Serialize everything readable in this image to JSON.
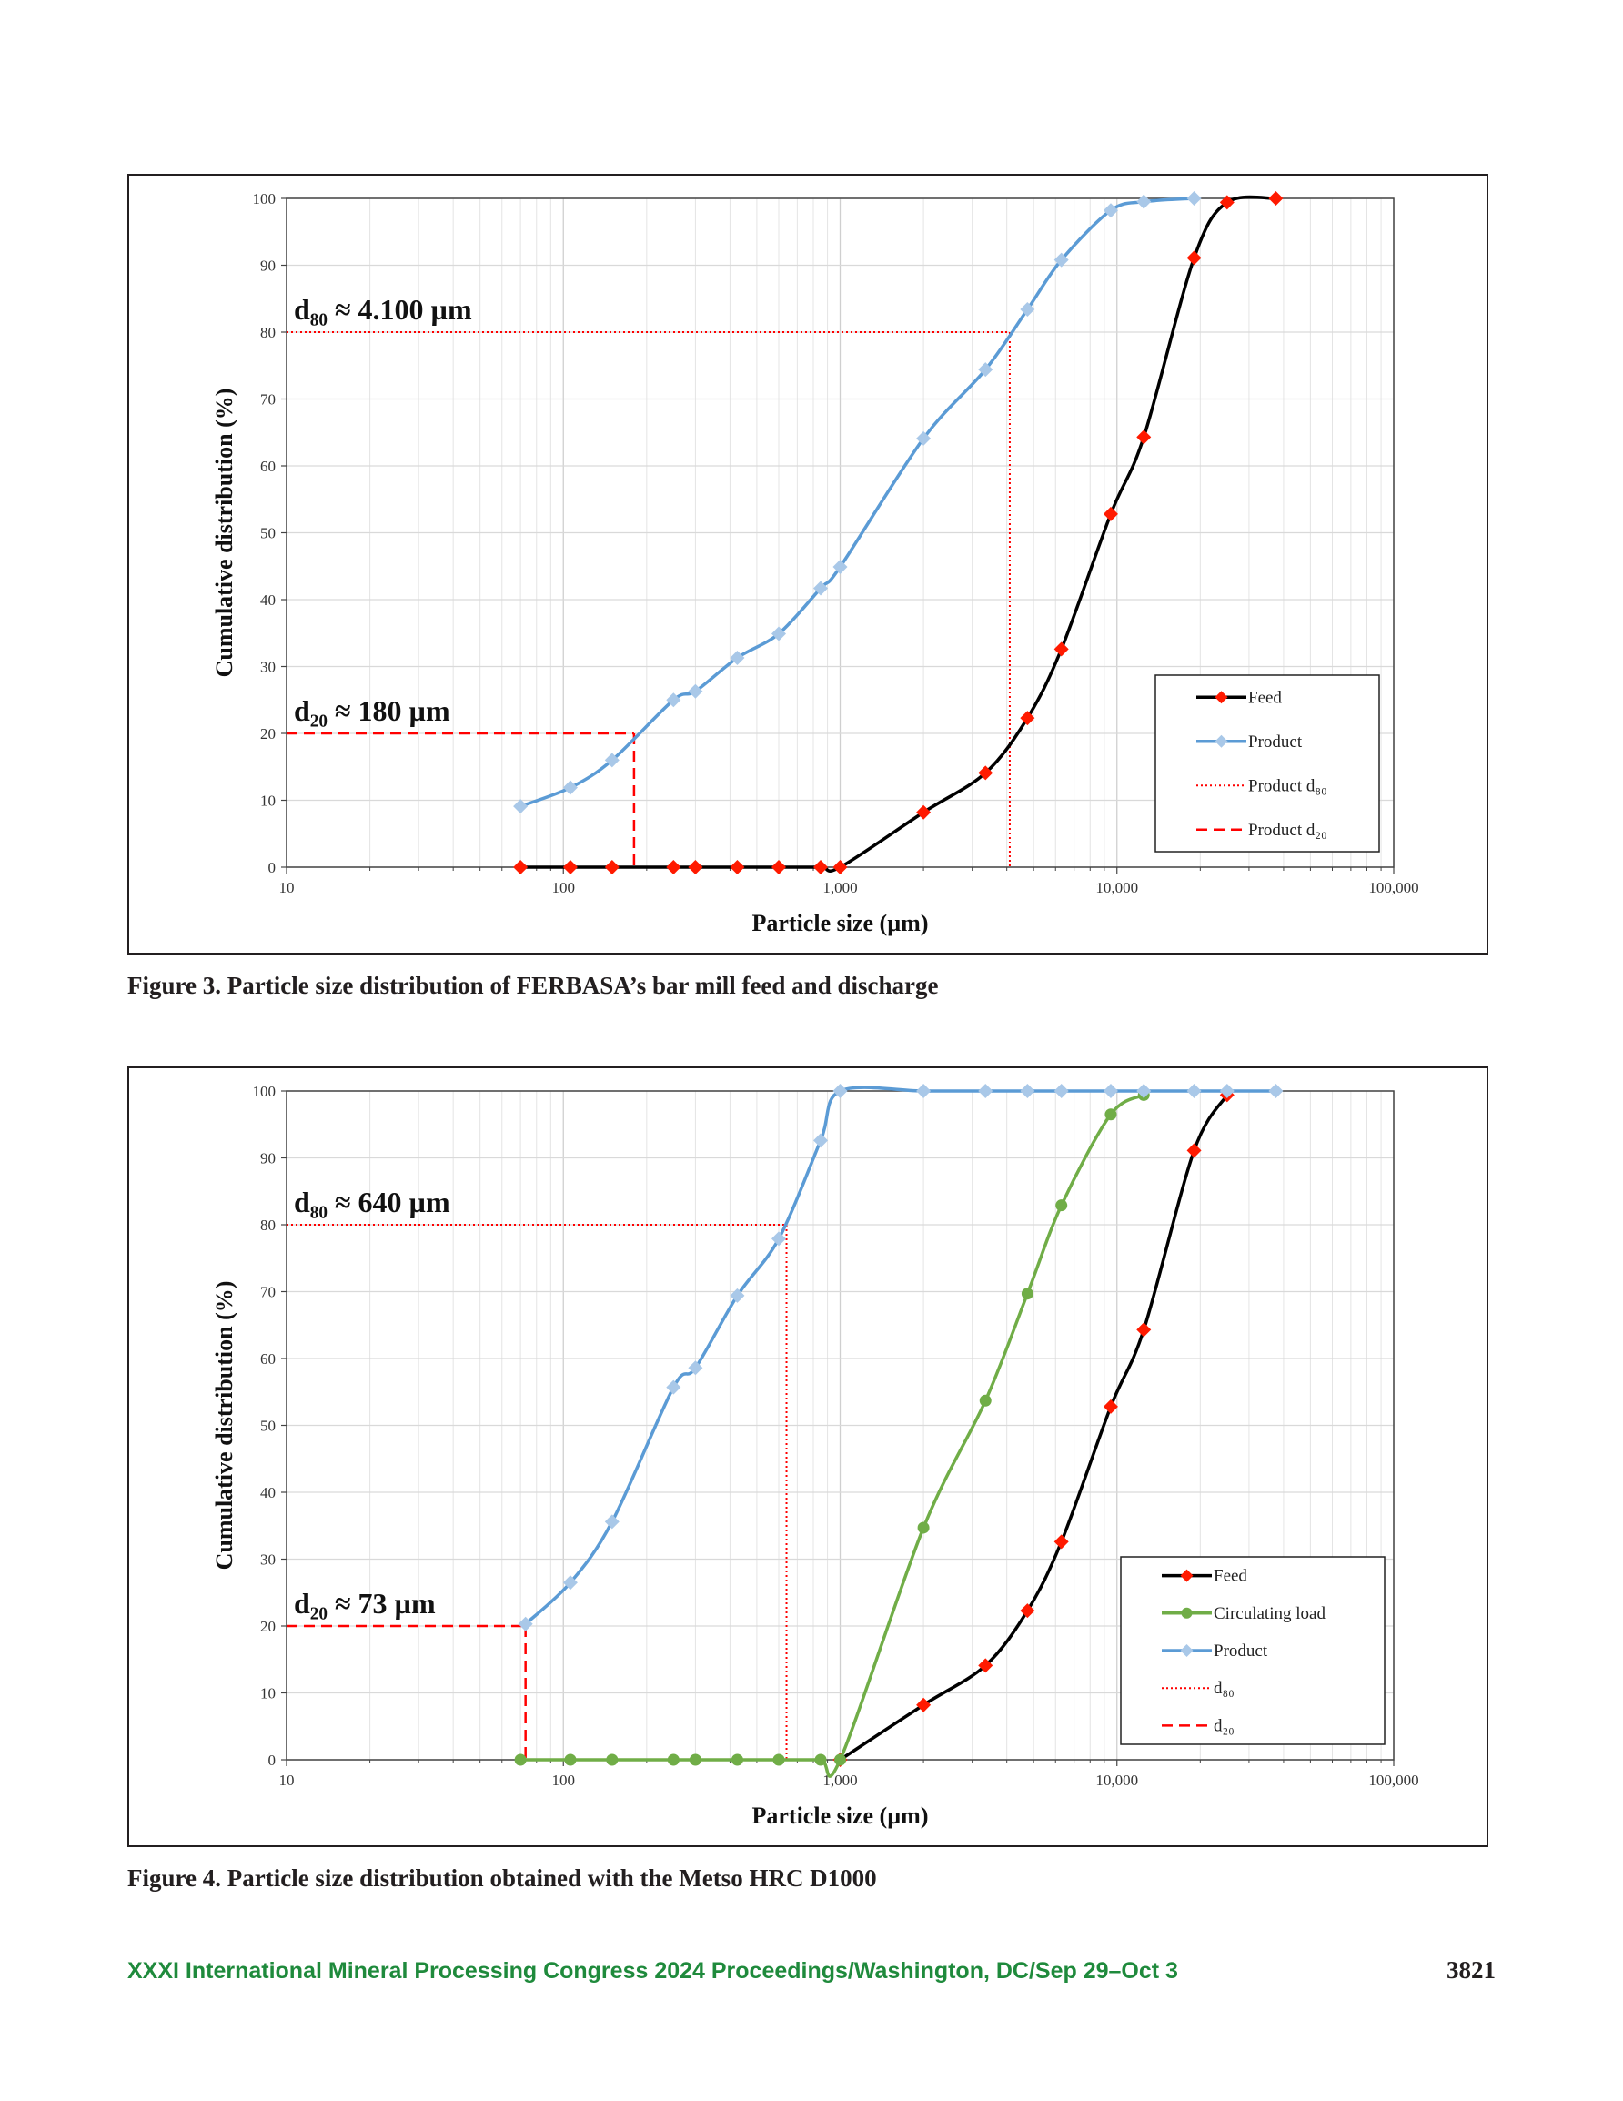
{
  "figures": [
    {
      "caption": "Figure 3. Particle size distribution of FERBASA’s bar mill feed and discharge",
      "chart_data": {
        "type": "line",
        "xscale": "log",
        "xlim": [
          10,
          100000
        ],
        "ylim": [
          0,
          100
        ],
        "xlabel": "Particle size (µm)",
        "ylabel": "Cumulative distribution (%)",
        "x_ticks": [
          10,
          100,
          1000,
          10000,
          100000
        ],
        "x_tick_labels": [
          "10",
          "100",
          "1,000",
          "10,000",
          "100,000"
        ],
        "y_ticks": [
          0,
          10,
          20,
          30,
          40,
          50,
          60,
          70,
          80,
          90,
          100
        ],
        "grid": true,
        "legend_position": "bottom-right",
        "series": [
          {
            "name": "Feed",
            "color": "#000000",
            "marker": "diamond",
            "marker_color": "#ff1a00",
            "x": [
              70,
              106,
              150,
              250,
              300,
              425,
              600,
              850,
              1000,
              2000,
              3350,
              4750,
              6300,
              9500,
              12500,
              19000,
              25000,
              37500
            ],
            "y": [
              0,
              0,
              0,
              0,
              0,
              0,
              0,
              0,
              0,
              8.2,
              14.1,
              22.3,
              32.6,
              52.8,
              64.3,
              91.1,
              99.4,
              100
            ]
          },
          {
            "name": "Product",
            "color": "#5b9bd5",
            "marker": "diamond",
            "marker_color": "#a9c8e8",
            "x": [
              70,
              106,
              150,
              250,
              300,
              425,
              600,
              850,
              1000,
              2000,
              3350,
              4750,
              6300,
              9500,
              12500,
              19000
            ],
            "y": [
              9.1,
              11.9,
              16.0,
              25.0,
              26.3,
              31.3,
              34.9,
              41.7,
              44.9,
              64.1,
              74.4,
              83.4,
              90.8,
              98.2,
              99.5,
              100
            ]
          }
        ],
        "reference_lines": [
          {
            "name": "Product d₈₀",
            "x": 4100,
            "y": 80,
            "style": "dotted",
            "color": "#ff0000"
          },
          {
            "name": "Product d₂₀",
            "x": 180,
            "y": 20,
            "style": "dashed",
            "color": "#ff0000"
          }
        ],
        "annotations": [
          {
            "text": "d₈₀ ≈ 4.100 µm",
            "x": 10,
            "y": 80
          },
          {
            "text": "d₂₀ ≈ 180 µm",
            "x": 10,
            "y": 20
          }
        ]
      }
    },
    {
      "caption": "Figure 4. Particle size distribution obtained with the Metso HRC D1000",
      "chart_data": {
        "type": "line",
        "xscale": "log",
        "xlim": [
          10,
          100000
        ],
        "ylim": [
          0,
          100
        ],
        "xlabel": "Particle size (µm)",
        "ylabel": "Cumulative distribution (%)",
        "x_ticks": [
          10,
          100,
          1000,
          10000,
          100000
        ],
        "x_tick_labels": [
          "10",
          "100",
          "1,000",
          "10,000",
          "100,000"
        ],
        "y_ticks": [
          0,
          10,
          20,
          30,
          40,
          50,
          60,
          70,
          80,
          90,
          100
        ],
        "grid": true,
        "legend_position": "bottom-right",
        "series": [
          {
            "name": "Feed",
            "color": "#000000",
            "marker": "diamond",
            "marker_color": "#ff1a00",
            "x": [
              1000,
              2000,
              3350,
              4750,
              6300,
              9500,
              12500,
              19000,
              25000
            ],
            "y": [
              0,
              8.2,
              14.1,
              22.3,
              32.6,
              52.8,
              64.3,
              91.1,
              99.4
            ]
          },
          {
            "name": "Circulating load",
            "color": "#70ad47",
            "marker": "circle",
            "marker_color": "#70ad47",
            "x": [
              70,
              106,
              150,
              250,
              300,
              425,
              600,
              850,
              1000,
              2000,
              3350,
              4750,
              6300,
              9500,
              12500
            ],
            "y": [
              0,
              0,
              0,
              0,
              0,
              0,
              0,
              0,
              0,
              34.7,
              53.7,
              69.7,
              82.9,
              96.5,
              99.4
            ]
          },
          {
            "name": "Product",
            "color": "#5b9bd5",
            "marker": "diamond",
            "marker_color": "#a9c8e8",
            "x": [
              73,
              106,
              150,
              250,
              300,
              425,
              600,
              850,
              1000,
              2000,
              3350,
              4750,
              6300,
              9500,
              12500,
              19000,
              25000,
              37500
            ],
            "y": [
              20.3,
              26.5,
              35.6,
              55.7,
              58.6,
              69.4,
              77.9,
              92.6,
              100,
              100,
              100,
              100,
              100,
              100,
              100,
              100,
              100,
              100
            ]
          }
        ],
        "reference_lines": [
          {
            "name": "d₈₀",
            "x": 640,
            "y": 80,
            "style": "dotted",
            "color": "#ff0000"
          },
          {
            "name": "d₂₀",
            "x": 73,
            "y": 20,
            "style": "dashed",
            "color": "#ff0000"
          }
        ],
        "annotations": [
          {
            "text": "d₈₀ ≈ 640 µm",
            "x": 10,
            "y": 80
          },
          {
            "text": "d₂₀ ≈ 73 µm",
            "x": 10,
            "y": 20
          }
        ]
      }
    }
  ],
  "footer": {
    "left": "XXXI International Mineral Processing Congress 2024 Proceedings/Washington, DC/Sep 29–Oct 3",
    "page_number": "3821"
  }
}
